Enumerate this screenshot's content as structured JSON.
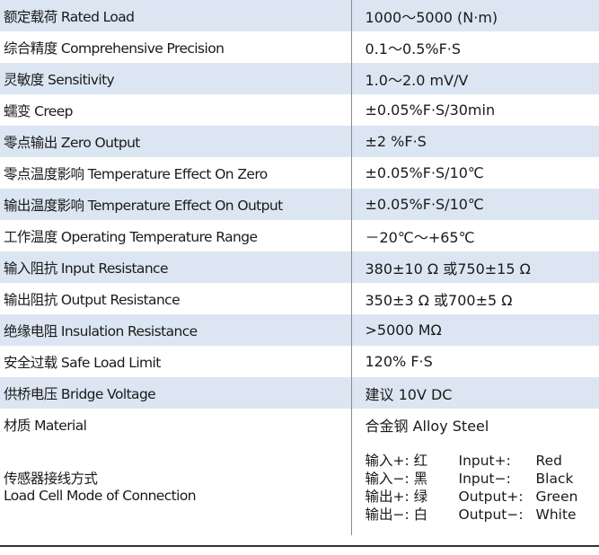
{
  "specs": [
    {
      "label": "额定载荷 Rated Load",
      "value": "1000～5000 (N·m)"
    },
    {
      "label": "综合精度 Comprehensive Precision",
      "value": "0.1～0.5%F·S"
    },
    {
      "label": "灵敏度 Sensitivity",
      "value": "1.0～2.0 mV/V"
    },
    {
      "label": "蠕变 Creep",
      "value": "±0.05%F·S/30min"
    },
    {
      "label": "零点输出 Zero Output",
      "value": "±2 %F·S"
    },
    {
      "label": "零点温度影响 Temperature Effect On Zero",
      "value": "±0.05%F·S/10℃"
    },
    {
      "label": "输出温度影响 Temperature Effect On Output",
      "value": "±0.05%F·S/10℃"
    },
    {
      "label": "工作温度 Operating Temperature Range",
      "value": "－20℃～+65℃"
    },
    {
      "label": "输入阻抗 Input Resistance",
      "value": "380±10 Ω 或750±15 Ω"
    },
    {
      "label": "输出阻抗 Output Resistance",
      "value": "350±3 Ω 或700±5 Ω"
    },
    {
      "label": "绝缘电阻 Insulation Resistance",
      "value": ">5000 MΩ"
    },
    {
      "label": "安全过载 Safe Load Limit",
      "value": "120% F·S"
    },
    {
      "label": "供桥电压 Bridge Voltage",
      "value": "建议 10V DC"
    },
    {
      "label": "材质 Material",
      "value": "合金钢 Alloy Steel"
    }
  ],
  "connection": {
    "label_cn": "传感器接线方式",
    "label_en": "Load Cell Mode of Connection",
    "wires": [
      {
        "cn": "输入+: 红",
        "en": "Input+:",
        "color": "Red"
      },
      {
        "cn": "输入−: 黑",
        "en": "Input−:",
        "color": "Black"
      },
      {
        "cn": "输出+: 绿",
        "en": "Output+:",
        "color": "Green"
      },
      {
        "cn": "输出−: 白",
        "en": "Output−:",
        "color": "White"
      }
    ]
  }
}
